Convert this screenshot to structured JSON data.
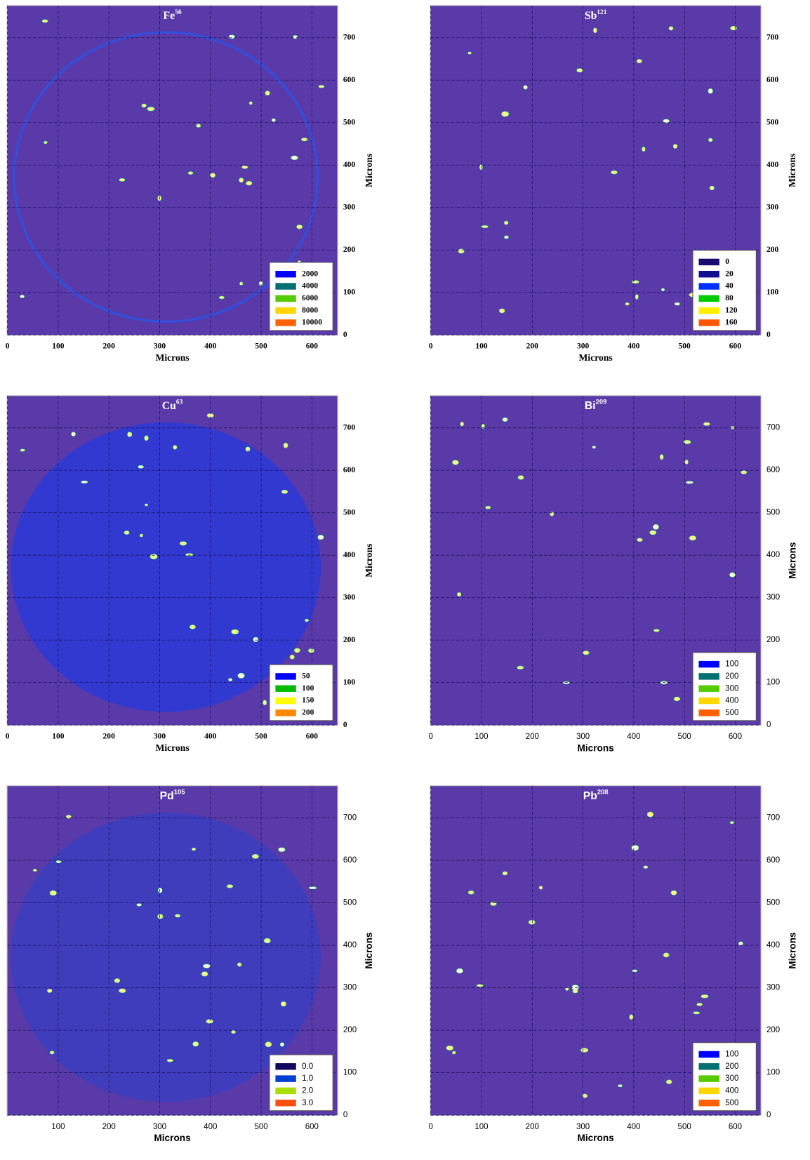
{
  "chart_data": [
    {
      "type": "heatmap",
      "title": [
        "Fe",
        "56"
      ],
      "xlabel": "Microns",
      "ylabel": "Microns",
      "xlim": [
        0,
        650
      ],
      "ylim": [
        0,
        775
      ],
      "xticks": [
        0,
        100,
        200,
        300,
        400,
        500,
        600
      ],
      "yticks": [
        0,
        100,
        200,
        300,
        400,
        500,
        600,
        700
      ],
      "grid": true,
      "legend": [
        {
          "value": 2000,
          "color": "#0000ff"
        },
        {
          "value": 4000,
          "color": "#007070"
        },
        {
          "value": 6000,
          "color": "#55cc00"
        },
        {
          "value": 8000,
          "color": "#ffd700"
        },
        {
          "value": 10000,
          "color": "#ff6000"
        }
      ]
    },
    {
      "type": "heatmap",
      "title": [
        "Sb",
        "121"
      ],
      "xlabel": "Microns",
      "ylabel": "Microns",
      "xlim": [
        0,
        650
      ],
      "ylim": [
        0,
        775
      ],
      "xticks": [
        0,
        100,
        200,
        300,
        400,
        500,
        600
      ],
      "yticks": [
        0,
        100,
        200,
        300,
        400,
        500,
        600,
        700
      ],
      "grid": true,
      "legend": [
        {
          "value": 0,
          "color": "#1a0a70"
        },
        {
          "value": 20,
          "color": "#101090"
        },
        {
          "value": 40,
          "color": "#0030ff"
        },
        {
          "value": 80,
          "color": "#00cc00"
        },
        {
          "value": 120,
          "color": "#ffee00"
        },
        {
          "value": 160,
          "color": "#ff5500"
        }
      ]
    },
    {
      "type": "heatmap",
      "title": [
        "Cu",
        "63"
      ],
      "xlabel": "Microns",
      "ylabel": "Microns",
      "xlim": [
        0,
        650
      ],
      "ylim": [
        0,
        775
      ],
      "xticks": [
        0,
        100,
        200,
        300,
        400,
        500,
        600
      ],
      "yticks": [
        0,
        100,
        200,
        300,
        400,
        500,
        600,
        700
      ],
      "grid": true,
      "legend": [
        {
          "value": 50,
          "color": "#0000ff"
        },
        {
          "value": 100,
          "color": "#00bb00"
        },
        {
          "value": 150,
          "color": "#ffff00"
        },
        {
          "value": 200,
          "color": "#ff8800"
        }
      ]
    },
    {
      "type": "heatmap",
      "title": [
        "Bi",
        "209"
      ],
      "xlabel": "Microns",
      "ylabel": "Microns",
      "xlim": [
        0,
        650
      ],
      "ylim": [
        0,
        775
      ],
      "xticks": [
        0,
        100,
        200,
        300,
        400,
        500,
        600
      ],
      "yticks": [
        0,
        100,
        200,
        300,
        400,
        500,
        600,
        700
      ],
      "grid": true,
      "legend": [
        {
          "value": 100,
          "color": "#0000ff"
        },
        {
          "value": 200,
          "color": "#007070"
        },
        {
          "value": 300,
          "color": "#55cc00"
        },
        {
          "value": 400,
          "color": "#ffd700"
        },
        {
          "value": 500,
          "color": "#ff6000"
        }
      ]
    },
    {
      "type": "heatmap",
      "title": [
        "Pd",
        "105"
      ],
      "xlabel": "Microns",
      "ylabel": "Microns",
      "xlim": [
        0,
        650
      ],
      "ylim": [
        0,
        775
      ],
      "xticks": [
        100,
        200,
        300,
        400,
        500,
        600
      ],
      "yticks": [
        0,
        100,
        200,
        300,
        400,
        500,
        600,
        700
      ],
      "grid": true,
      "legend": [
        {
          "value": {
            "value": 0,
            "label": "0.0"
          },
          "color": "#100860"
        },
        {
          "value": {
            "value": 1,
            "label": "1.0"
          },
          "color": "#0040d0"
        },
        {
          "value": {
            "value": 2,
            "label": "2.0"
          },
          "color": "#aadd00"
        },
        {
          "value": {
            "value": 3,
            "label": "3.0"
          },
          "color": "#ff5010"
        }
      ]
    },
    {
      "type": "heatmap",
      "title": [
        "Pb",
        "208"
      ],
      "xlabel": "Microns",
      "ylabel": "Microns",
      "xlim": [
        0,
        650
      ],
      "ylim": [
        0,
        775
      ],
      "xticks": [
        0,
        100,
        200,
        300,
        400,
        500,
        600
      ],
      "yticks": [
        0,
        100,
        200,
        300,
        400,
        500,
        600,
        700
      ],
      "grid": true,
      "legend": [
        {
          "value": 100,
          "color": "#0000ff"
        },
        {
          "value": 200,
          "color": "#007070"
        },
        {
          "value": 300,
          "color": "#55cc00"
        },
        {
          "value": 400,
          "color": "#ffd700"
        },
        {
          "value": 500,
          "color": "#ff6000"
        }
      ]
    }
  ]
}
